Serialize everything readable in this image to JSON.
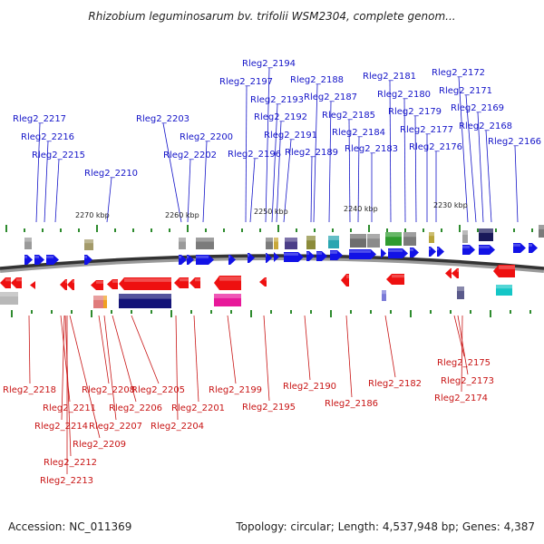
{
  "title": "Rhizobium leguminosarum bv. trifolii WSM2304, complete genom...",
  "footer": {
    "accession": "Accession: NC_011369",
    "topology": "Topology: circular; Length: 4,537,948 bp; Genes: 4,387"
  },
  "colors": {
    "forward": "#1212e6",
    "reverse": "#ee1010",
    "top_label": "#1414c8",
    "bottom_label": "#c81414",
    "tick": "#2e8b2e"
  },
  "scale_labels": [
    "2270 kbp",
    "2260 kbp",
    "2250 kbp",
    "2240 kbp",
    "2230 kbp"
  ],
  "top_labels": [
    "Rleg2_2194",
    "Rleg2_2172",
    "Rleg2_2197",
    "Rleg2_2188",
    "Rleg2_2181",
    "Rleg2_2171",
    "Rleg2_2193",
    "Rleg2_2187",
    "Rleg2_2180",
    "Rleg2_2169",
    "Rleg2_2217",
    "Rleg2_2203",
    "Rleg2_2192",
    "Rleg2_2185",
    "Rleg2_2179",
    "Rleg2_2168",
    "Rleg2_2216",
    "Rleg2_2200",
    "Rleg2_2191",
    "Rleg2_2184",
    "Rleg2_2177",
    "Rleg2_2166",
    "Rleg2_2215",
    "Rleg2_2202",
    "Rleg2_2196",
    "Rleg2_2189",
    "Rleg2_2183",
    "Rleg2_2176",
    "Rleg2_2210"
  ],
  "bottom_labels": [
    "Rleg2_2218",
    "Rleg2_2211",
    "Rleg2_2208",
    "Rleg2_2206",
    "Rleg2_2205",
    "Rleg2_2201",
    "Rleg2_2199",
    "Rleg2_2195",
    "Rleg2_2190",
    "Rleg2_2186",
    "Rleg2_2182",
    "Rleg2_2214",
    "Rleg2_2207",
    "Rleg2_2204",
    "Rleg2_2209",
    "Rleg2_2212",
    "Rleg2_2213",
    "Rleg2_2175",
    "Rleg2_2173",
    "Rleg2_2174"
  ]
}
